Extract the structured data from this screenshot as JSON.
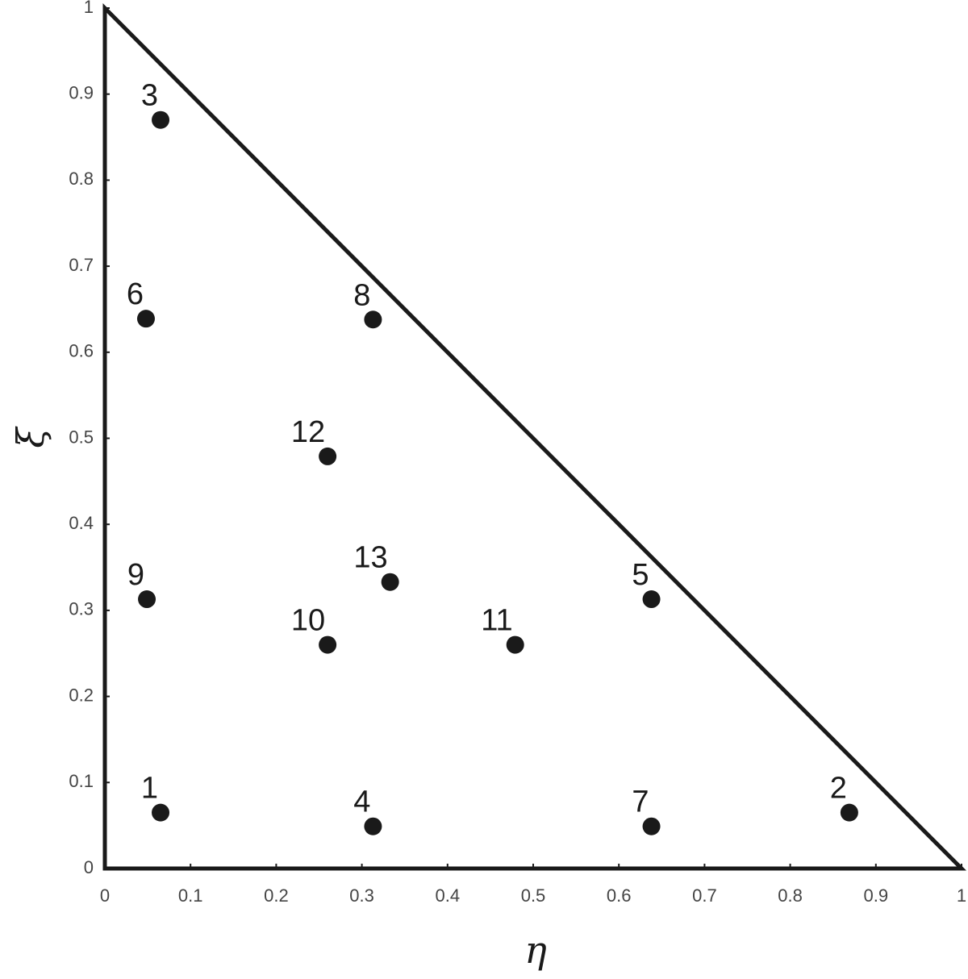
{
  "chart_data": {
    "type": "scatter",
    "x_label": "η",
    "y_label": "ξ",
    "x": [
      0.065,
      0.869,
      0.065,
      0.313,
      0.638,
      0.048,
      0.638,
      0.313,
      0.049,
      0.26,
      0.479,
      0.26,
      0.333
    ],
    "values": [
      0.065,
      0.065,
      0.87,
      0.049,
      0.313,
      0.639,
      0.049,
      0.638,
      0.313,
      0.26,
      0.26,
      0.479,
      0.333
    ],
    "point_labels": [
      "1",
      "2",
      "3",
      "4",
      "5",
      "6",
      "7",
      "8",
      "9",
      "10",
      "11",
      "12",
      "13"
    ],
    "color": "#1a1a1a",
    "xlim": [
      0,
      1
    ],
    "ylim": [
      0,
      1
    ],
    "xticks": [
      0,
      0.1,
      0.2,
      0.3,
      0.4,
      0.5,
      0.6,
      0.7,
      0.8,
      0.9,
      1
    ],
    "yticks": [
      0,
      0.1,
      0.2,
      0.3,
      0.4,
      0.5,
      0.6,
      0.7,
      0.8,
      0.9,
      1
    ],
    "grid": false
  }
}
